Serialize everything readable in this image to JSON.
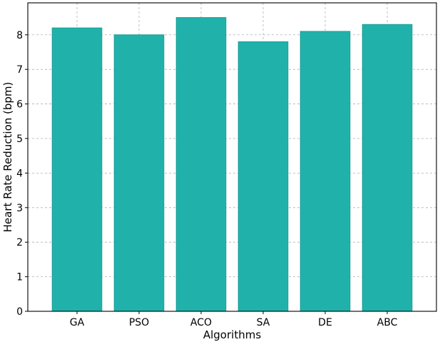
{
  "chart_data": {
    "type": "bar",
    "categories": [
      "GA",
      "PSO",
      "ACO",
      "SA",
      "DE",
      "ABC"
    ],
    "values": [
      8.2,
      8.0,
      8.5,
      7.8,
      8.1,
      8.3
    ],
    "title": "",
    "xlabel": "Algorithms",
    "ylabel": "Heart Rate Reduction (bpm)",
    "ylim": [
      0,
      8.925
    ],
    "yticks": [
      0,
      1,
      2,
      3,
      4,
      5,
      6,
      7,
      8
    ],
    "grid": true,
    "bar_color": "#20b2aa",
    "bar_edge_color": "#1a9e97"
  }
}
